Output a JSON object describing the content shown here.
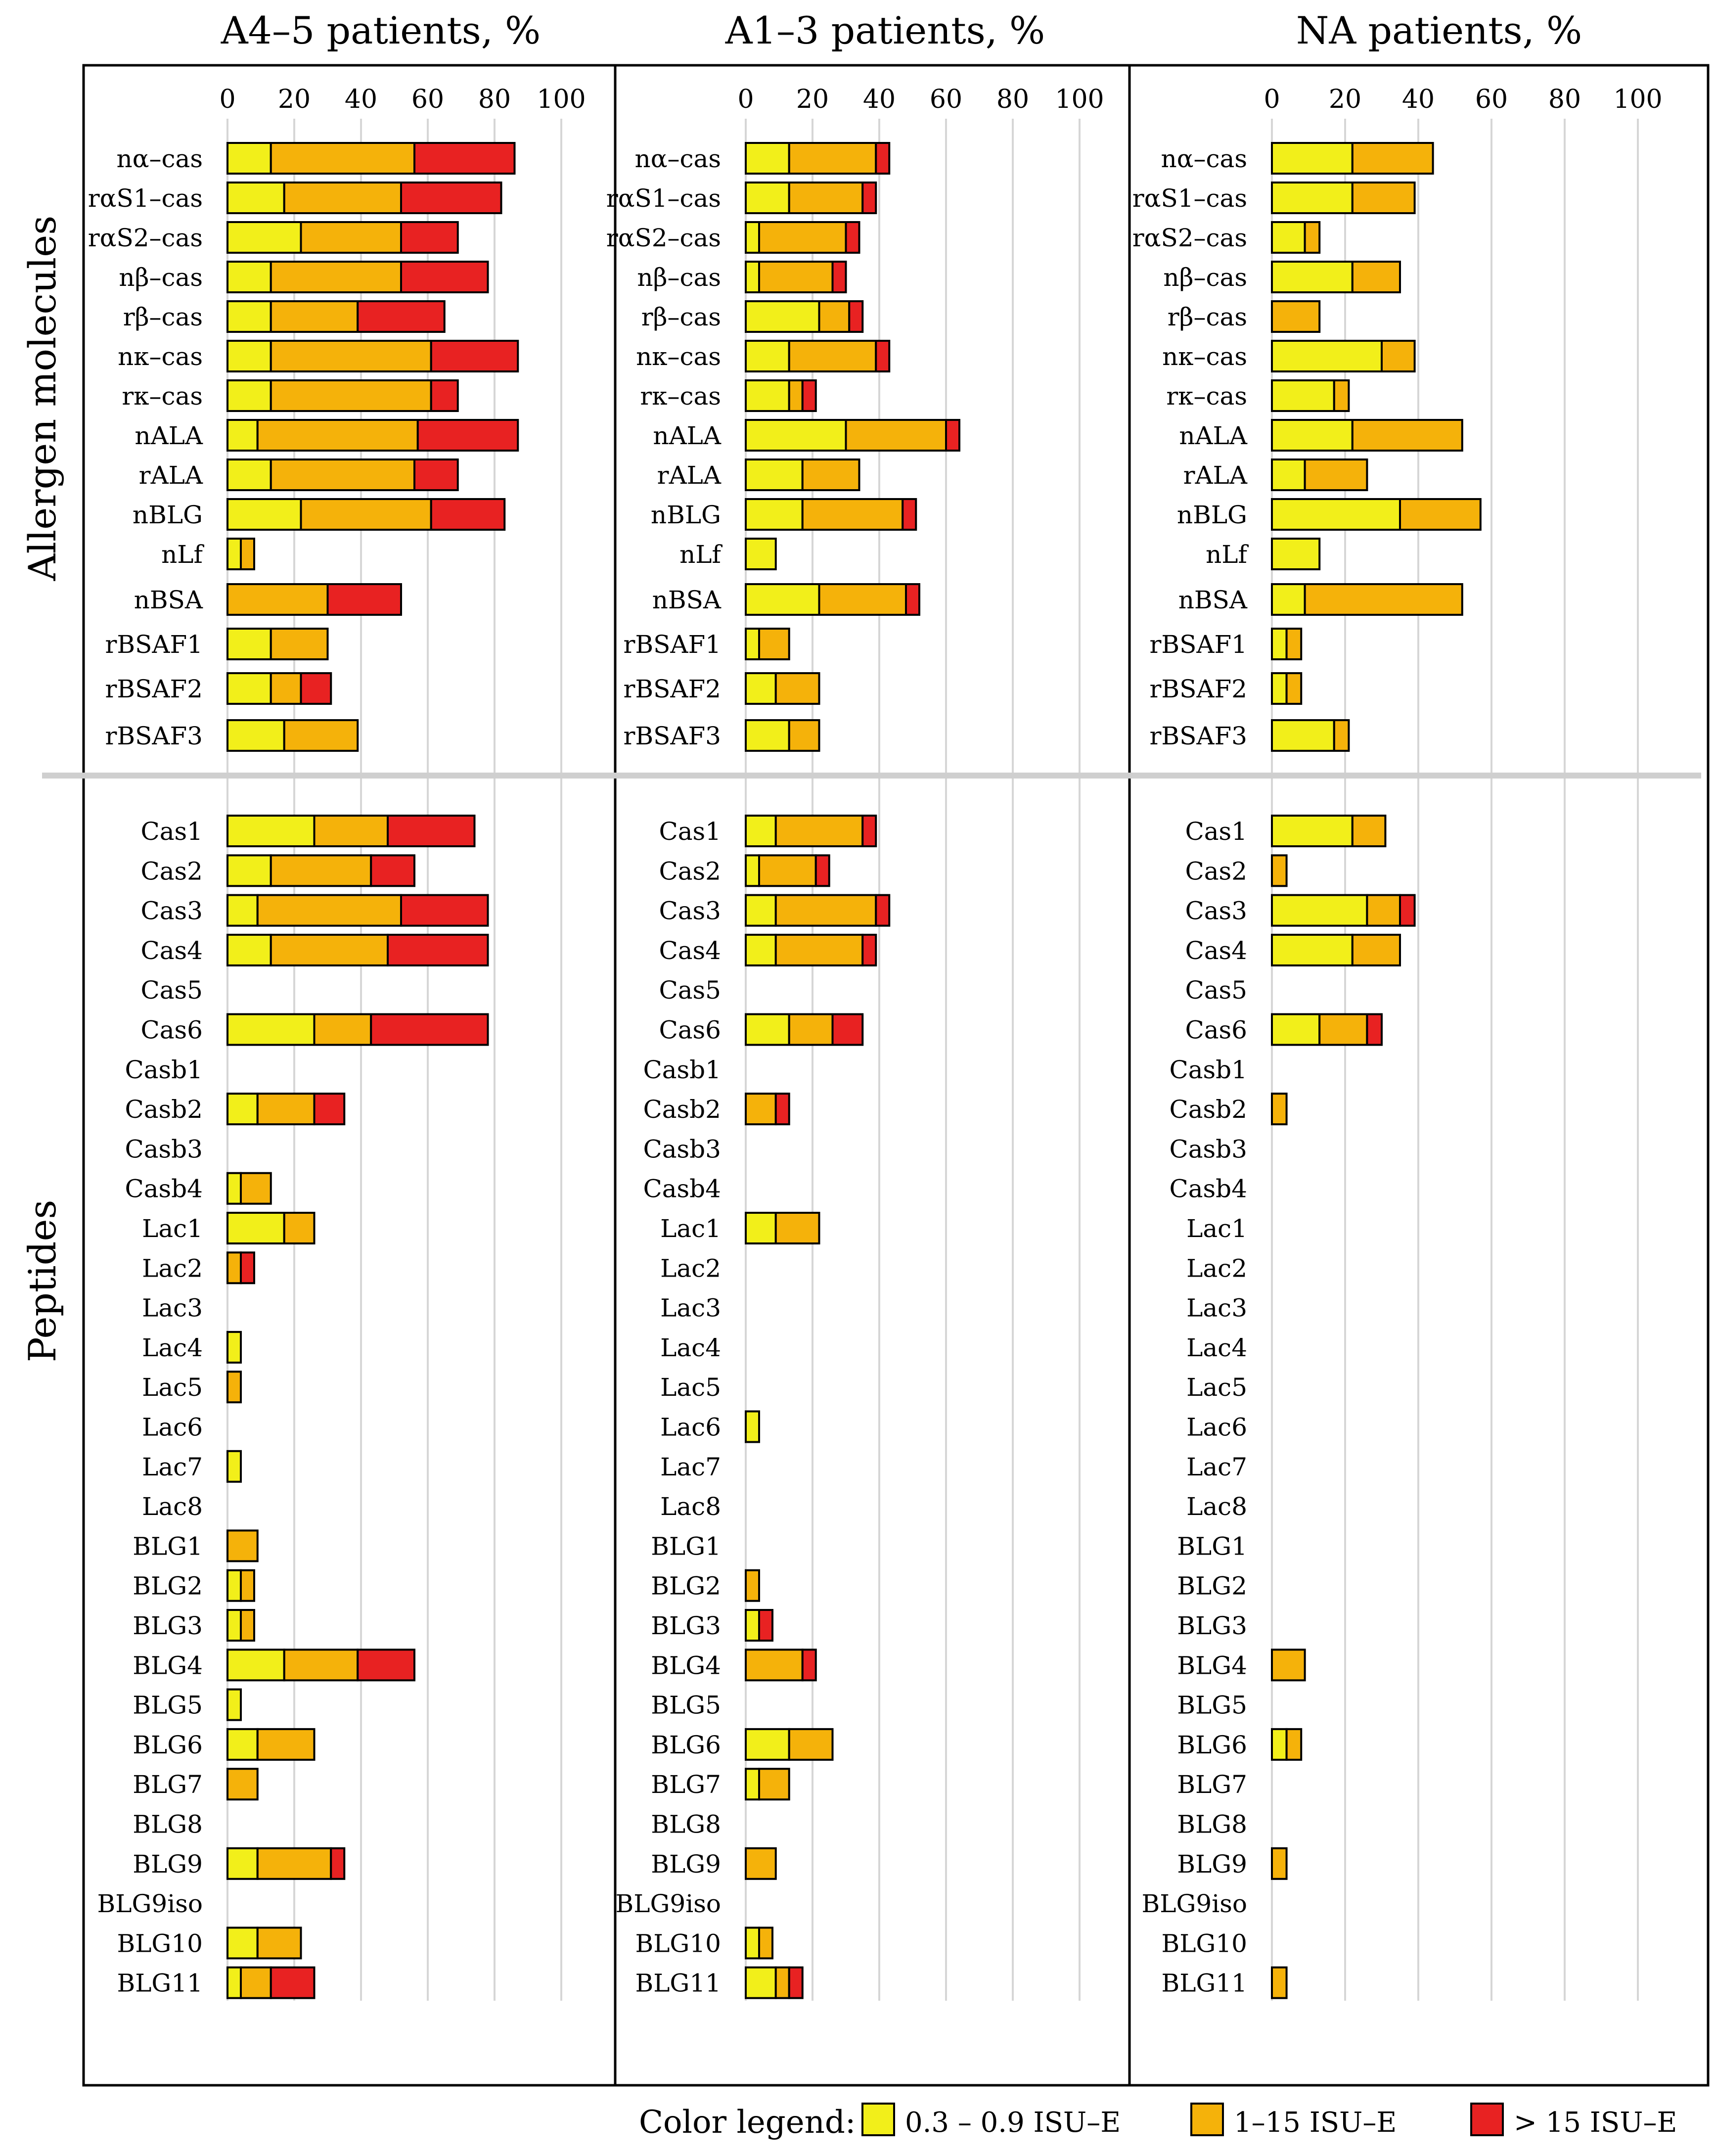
{
  "figure": {
    "panel_titles": [
      "A4–5 patients, %",
      "A1–3 patients, %",
      "NA patients, %"
    ],
    "group_labels": [
      "Allergen molecules",
      "Peptides"
    ]
  },
  "legend": {
    "title": "Color legend:",
    "items": [
      {
        "label": "0.3 – 0.9 ISU–E",
        "color": "#f2ef1a"
      },
      {
        "label": "1–15 ISU–E",
        "color": "#f5b20a"
      },
      {
        "label": "> 15 ISU–E",
        "color": "#e82222"
      }
    ]
  },
  "chart_data": {
    "type": "bar",
    "orientation": "horizontal",
    "stacked": true,
    "xlim": [
      0,
      100
    ],
    "ticks": [
      0,
      20,
      40,
      60,
      80,
      100
    ],
    "series_names": [
      "0.3 – 0.9 ISU–E",
      "1–15 ISU–E",
      "> 15 ISU–E"
    ],
    "colors": [
      "#f2ef1a",
      "#f5b20a",
      "#e82222"
    ],
    "groups": [
      {
        "name": "Allergen molecules",
        "categories": [
          "nα–cas",
          "rαS1–cas",
          "rαS2–cas",
          "nβ–cas",
          "rβ–cas",
          "nκ–cas",
          "rκ–cas",
          "nALA",
          "rALA",
          "nBLG",
          "nLf",
          "nBSA",
          "rBSAF1",
          "rBSAF2",
          "rBSAF3"
        ]
      },
      {
        "name": "Peptides",
        "categories": [
          "Cas1",
          "Cas2",
          "Cas3",
          "Cas4",
          "Cas5",
          "Cas6",
          "Casb1",
          "Casb2",
          "Casb3",
          "Casb4",
          "Lac1",
          "Lac2",
          "Lac3",
          "Lac4",
          "Lac5",
          "Lac6",
          "Lac7",
          "Lac8",
          "BLG1",
          "BLG2",
          "BLG3",
          "BLG4",
          "BLG5",
          "BLG6",
          "BLG7",
          "BLG8",
          "BLG9",
          "BLG9iso",
          "BLG10",
          "BLG11"
        ]
      }
    ],
    "panels": [
      {
        "title": "A4–5 patients, %",
        "values": [
          [
            13,
            43,
            30
          ],
          [
            17,
            35,
            30
          ],
          [
            22,
            30,
            17
          ],
          [
            13,
            39,
            26
          ],
          [
            13,
            26,
            26
          ],
          [
            13,
            48,
            26
          ],
          [
            13,
            48,
            8
          ],
          [
            9,
            48,
            30
          ],
          [
            13,
            43,
            13
          ],
          [
            22,
            39,
            22
          ],
          [
            4,
            4,
            0
          ],
          [
            0,
            30,
            22
          ],
          [
            13,
            17,
            0
          ],
          [
            13,
            9,
            9
          ],
          [
            17,
            22,
            0
          ],
          [
            26,
            22,
            26
          ],
          [
            13,
            30,
            13
          ],
          [
            9,
            43,
            26
          ],
          [
            13,
            35,
            30
          ],
          [
            0,
            0,
            0
          ],
          [
            26,
            17,
            35
          ],
          [
            0,
            0,
            0
          ],
          [
            9,
            17,
            9
          ],
          [
            0,
            0,
            0
          ],
          [
            4,
            9,
            0
          ],
          [
            17,
            9,
            0
          ],
          [
            0,
            4,
            4
          ],
          [
            0,
            0,
            0
          ],
          [
            4,
            0,
            0
          ],
          [
            0,
            4,
            0
          ],
          [
            0,
            0,
            0
          ],
          [
            4,
            0,
            0
          ],
          [
            0,
            0,
            0
          ],
          [
            0,
            9,
            0
          ],
          [
            4,
            4,
            0
          ],
          [
            4,
            4,
            0
          ],
          [
            17,
            22,
            17
          ],
          [
            4,
            0,
            0
          ],
          [
            9,
            17,
            0
          ],
          [
            0,
            9,
            0
          ],
          [
            0,
            0,
            0
          ],
          [
            9,
            22,
            4
          ],
          [
            0,
            0,
            0
          ],
          [
            9,
            13,
            0
          ],
          [
            4,
            9,
            13
          ]
        ]
      },
      {
        "title": "A1–3 patients, %",
        "values": [
          [
            13,
            26,
            4
          ],
          [
            13,
            22,
            4
          ],
          [
            4,
            26,
            4
          ],
          [
            4,
            22,
            4
          ],
          [
            22,
            9,
            4
          ],
          [
            13,
            26,
            4
          ],
          [
            13,
            4,
            4
          ],
          [
            30,
            30,
            4
          ],
          [
            17,
            17,
            0
          ],
          [
            17,
            30,
            4
          ],
          [
            9,
            0,
            0
          ],
          [
            22,
            26,
            4
          ],
          [
            4,
            9,
            0
          ],
          [
            9,
            13,
            0
          ],
          [
            13,
            9,
            0
          ],
          [
            9,
            26,
            4
          ],
          [
            4,
            17,
            4
          ],
          [
            9,
            30,
            4
          ],
          [
            9,
            26,
            4
          ],
          [
            0,
            0,
            0
          ],
          [
            13,
            13,
            9
          ],
          [
            0,
            0,
            0
          ],
          [
            0,
            9,
            4
          ],
          [
            0,
            0,
            0
          ],
          [
            0,
            0,
            0
          ],
          [
            9,
            13,
            0
          ],
          [
            0,
            0,
            0
          ],
          [
            0,
            0,
            0
          ],
          [
            0,
            0,
            0
          ],
          [
            0,
            0,
            0
          ],
          [
            4,
            0,
            0
          ],
          [
            0,
            0,
            0
          ],
          [
            0,
            0,
            0
          ],
          [
            0,
            0,
            0
          ],
          [
            0,
            4,
            0
          ],
          [
            4,
            0,
            4
          ],
          [
            0,
            17,
            4
          ],
          [
            0,
            0,
            0
          ],
          [
            13,
            13,
            0
          ],
          [
            4,
            9,
            0
          ],
          [
            0,
            0,
            0
          ],
          [
            0,
            9,
            0
          ],
          [
            0,
            0,
            0
          ],
          [
            4,
            4,
            0
          ],
          [
            9,
            4,
            4
          ]
        ]
      },
      {
        "title": "NA patients, %",
        "values": [
          [
            22,
            22,
            0
          ],
          [
            22,
            17,
            0
          ],
          [
            9,
            4,
            0
          ],
          [
            22,
            13,
            0
          ],
          [
            0,
            13,
            0
          ],
          [
            30,
            9,
            0
          ],
          [
            17,
            4,
            0
          ],
          [
            22,
            30,
            0
          ],
          [
            9,
            17,
            0
          ],
          [
            35,
            22,
            0
          ],
          [
            13,
            0,
            0
          ],
          [
            9,
            43,
            0
          ],
          [
            4,
            4,
            0
          ],
          [
            4,
            4,
            0
          ],
          [
            17,
            4,
            0
          ],
          [
            22,
            9,
            0
          ],
          [
            0,
            4,
            0
          ],
          [
            26,
            9,
            4
          ],
          [
            22,
            13,
            0
          ],
          [
            0,
            0,
            0
          ],
          [
            13,
            13,
            4
          ],
          [
            0,
            0,
            0
          ],
          [
            0,
            4,
            0
          ],
          [
            0,
            0,
            0
          ],
          [
            0,
            0,
            0
          ],
          [
            0,
            0,
            0
          ],
          [
            0,
            0,
            0
          ],
          [
            0,
            0,
            0
          ],
          [
            0,
            0,
            0
          ],
          [
            0,
            0,
            0
          ],
          [
            0,
            0,
            0
          ],
          [
            0,
            0,
            0
          ],
          [
            0,
            0,
            0
          ],
          [
            0,
            0,
            0
          ],
          [
            0,
            0,
            0
          ],
          [
            0,
            0,
            0
          ],
          [
            0,
            9,
            0
          ],
          [
            0,
            0,
            0
          ],
          [
            4,
            4,
            0
          ],
          [
            0,
            0,
            0
          ],
          [
            0,
            0,
            0
          ],
          [
            0,
            4,
            0
          ],
          [
            0,
            0,
            0
          ],
          [
            0,
            0,
            0
          ],
          [
            0,
            4,
            0
          ]
        ]
      }
    ]
  }
}
